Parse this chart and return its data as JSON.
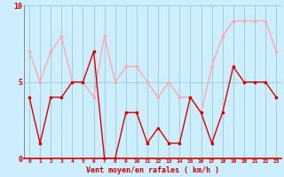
{
  "x": [
    0,
    1,
    2,
    3,
    4,
    5,
    6,
    7,
    8,
    9,
    10,
    11,
    12,
    13,
    14,
    15,
    16,
    17,
    18,
    19,
    20,
    21,
    22,
    23
  ],
  "avg_wind": [
    4,
    1,
    4,
    4,
    5,
    5,
    7,
    0,
    0,
    3,
    3,
    1,
    2,
    1,
    1,
    4,
    3,
    1,
    3,
    6,
    5,
    5,
    5,
    4
  ],
  "gust_wind": [
    7,
    5,
    7,
    8,
    5,
    5,
    4,
    8,
    5,
    6,
    6,
    5,
    4,
    5,
    4,
    4,
    3,
    6,
    8,
    9,
    9,
    9,
    9,
    7
  ],
  "bg_color": "#cceeff",
  "avg_color": "#dd0000",
  "gust_color": "#ffaaaa",
  "grid_color": "#99cccc",
  "xlabel": "Vent moyen/en rafales ( km/h )",
  "xlabel_color": "#cc0000",
  "tick_color": "#cc0000",
  "ylim": [
    0,
    10
  ],
  "yticks": [
    0,
    5,
    10
  ],
  "axis_line_color": "#cc0000",
  "left_spine_color": "#888888"
}
